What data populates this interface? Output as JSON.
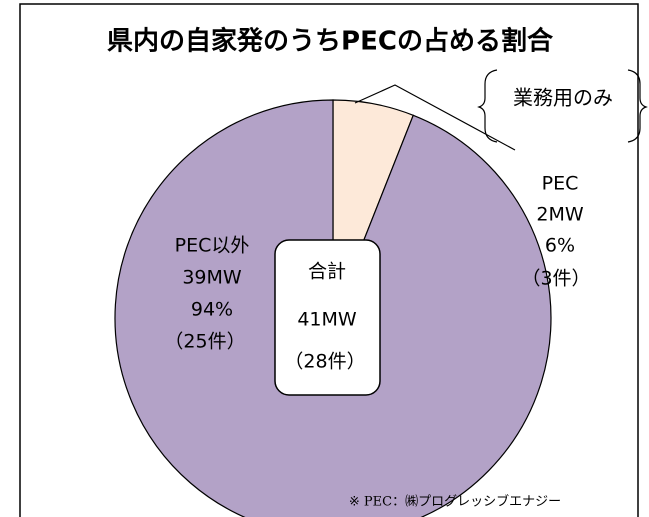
{
  "chart_data": {
    "type": "pie",
    "title": "県内の自家発のうちPECの占める割合",
    "subtitle": "業務用のみ",
    "categories": [
      "PEC",
      "PEC以外"
    ],
    "values": [
      6,
      94
    ],
    "value_labels": [
      "6%",
      "94%"
    ],
    "mw_labels": [
      "2MW",
      "39MW"
    ],
    "count_labels": [
      "（3件）",
      "（25件）"
    ],
    "colors": [
      "#fde9d9",
      "#b3a2c7"
    ],
    "total": {
      "label": "合計",
      "value": "41MW",
      "count": "（28件）"
    },
    "footnote": "※ PEC：㈱プログレッシブエナジー"
  }
}
